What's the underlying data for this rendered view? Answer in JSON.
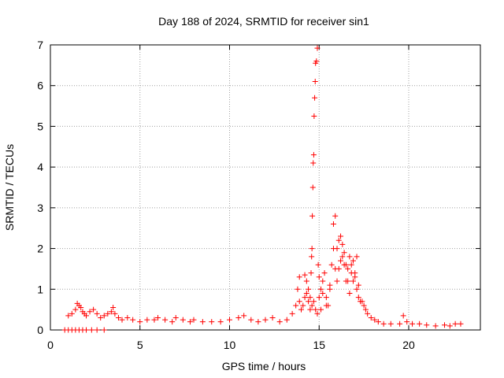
{
  "chart_data": {
    "type": "scatter",
    "title": "Day 188 of 2024, SRMTID for receiver sin1",
    "xlabel": "GPS time / hours",
    "ylabel": "SRMTID / TECUs",
    "xlim": [
      0,
      24
    ],
    "ylim": [
      0,
      7
    ],
    "xticks": [
      "0",
      "5",
      "10",
      "15",
      "20"
    ],
    "yticks": [
      "0",
      "1",
      "2",
      "3",
      "4",
      "5",
      "6",
      "7"
    ],
    "grid": true,
    "marker": "+",
    "series": [
      {
        "name": "sin1",
        "color": "#ff0000",
        "x": [
          0.8,
          1.0,
          1.2,
          1.4,
          1.6,
          1.8,
          2.0,
          2.3,
          2.6,
          3.0,
          1.0,
          1.2,
          1.4,
          1.5,
          1.6,
          1.7,
          1.8,
          1.9,
          2.0,
          2.2,
          2.4,
          2.6,
          2.8,
          3.0,
          3.2,
          3.4,
          3.5,
          3.6,
          3.8,
          4.0,
          4.3,
          4.6,
          5.0,
          5.4,
          5.8,
          6.0,
          6.4,
          6.8,
          7.0,
          7.4,
          7.8,
          8.0,
          8.5,
          9.0,
          9.5,
          10.0,
          10.5,
          10.8,
          11.2,
          11.6,
          12.0,
          12.4,
          12.8,
          13.2,
          13.5,
          13.7,
          13.9,
          14.0,
          14.1,
          14.2,
          14.3,
          14.4,
          14.5,
          14.6,
          14.7,
          14.8,
          14.9,
          15.0,
          15.1,
          15.2,
          15.3,
          15.4,
          15.5,
          15.6,
          15.7,
          15.8,
          15.9,
          16.0,
          16.1,
          16.2,
          16.3,
          16.4,
          16.5,
          16.6,
          16.7,
          16.8,
          16.9,
          17.0,
          17.1,
          17.2,
          17.3,
          17.5,
          17.7,
          17.9,
          18.1,
          18.3,
          18.6,
          19.0,
          19.5,
          19.7,
          19.9,
          20.2,
          20.6,
          21.0,
          21.5,
          22.0,
          22.3,
          22.6,
          22.9,
          14.5,
          14.55,
          14.58,
          14.6,
          14.62,
          14.65,
          14.67,
          14.7,
          14.72,
          14.75,
          14.78,
          14.8,
          14.85,
          14.9,
          14.95,
          15.0,
          15.2,
          15.4,
          15.6,
          15.8,
          15.9,
          16.0,
          16.1,
          16.2,
          16.3,
          16.4,
          16.5,
          16.6,
          16.7,
          16.8,
          16.9,
          17.0,
          17.1,
          17.2,
          17.4,
          17.6,
          13.8,
          13.9,
          14.2,
          14.3,
          14.4,
          15.1
        ],
        "y": [
          0.0,
          0.0,
          0.0,
          0.0,
          0.0,
          0.0,
          0.0,
          0.0,
          0.0,
          0.0,
          0.35,
          0.4,
          0.5,
          0.65,
          0.6,
          0.55,
          0.45,
          0.4,
          0.35,
          0.45,
          0.5,
          0.4,
          0.3,
          0.35,
          0.4,
          0.45,
          0.55,
          0.4,
          0.3,
          0.25,
          0.3,
          0.25,
          0.2,
          0.25,
          0.25,
          0.3,
          0.25,
          0.2,
          0.3,
          0.25,
          0.2,
          0.25,
          0.2,
          0.2,
          0.2,
          0.25,
          0.3,
          0.35,
          0.25,
          0.2,
          0.25,
          0.3,
          0.2,
          0.25,
          0.4,
          0.6,
          0.7,
          0.5,
          0.6,
          0.8,
          0.9,
          0.7,
          0.5,
          0.6,
          0.7,
          0.5,
          0.4,
          0.8,
          1.0,
          1.2,
          1.4,
          0.8,
          0.6,
          1.0,
          1.6,
          2.0,
          1.5,
          1.2,
          2.2,
          2.3,
          1.8,
          1.6,
          1.2,
          1.5,
          1.8,
          1.6,
          1.2,
          1.4,
          1.8,
          1.1,
          0.7,
          0.6,
          0.4,
          0.3,
          0.25,
          0.2,
          0.15,
          0.15,
          0.15,
          0.35,
          0.2,
          0.15,
          0.15,
          0.12,
          0.1,
          0.12,
          0.1,
          0.15,
          0.15,
          0.8,
          1.4,
          1.8,
          2.0,
          2.8,
          3.5,
          4.1,
          4.3,
          5.25,
          5.7,
          6.1,
          6.55,
          6.6,
          6.92,
          1.6,
          1.3,
          0.9,
          0.6,
          1.1,
          2.6,
          2.8,
          2.0,
          1.5,
          1.7,
          2.1,
          1.9,
          1.6,
          1.2,
          0.9,
          1.4,
          1.7,
          1.3,
          1.0,
          0.8,
          0.7,
          0.5,
          1.0,
          1.3,
          1.35,
          1.2,
          1.0,
          0.5
        ]
      }
    ]
  }
}
